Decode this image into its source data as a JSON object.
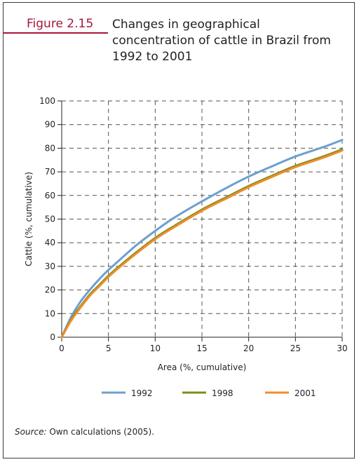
{
  "figure": {
    "number": "Figure 2.15",
    "title": "Changes in geographical concentration of cattle in Brazil from 1992 to 2001"
  },
  "source": {
    "label": "Source:",
    "text": " Own calculations (2005)."
  },
  "chart_data": {
    "type": "line",
    "xlabel": "Area (%, cumulative)",
    "ylabel": "Cattle (%, cumulative)",
    "xlim": [
      0,
      30
    ],
    "ylim": [
      0,
      100
    ],
    "xticks": [
      0,
      5,
      10,
      15,
      20,
      25,
      30
    ],
    "yticks": [
      0,
      10,
      20,
      30,
      40,
      50,
      60,
      70,
      80,
      90,
      100
    ],
    "grid": true,
    "legend_position": "bottom",
    "x": [
      0,
      1,
      2,
      3,
      4,
      5,
      6,
      8,
      10,
      12,
      15,
      18,
      20,
      22,
      25,
      28,
      30
    ],
    "series": [
      {
        "name": "1992",
        "color": "#6e9fcf",
        "values": [
          0,
          8.5,
          15,
          20,
          24.5,
          28.5,
          32,
          39,
          45,
          50.5,
          57.5,
          64,
          68,
          71.5,
          76.5,
          80.5,
          83.5
        ]
      },
      {
        "name": "1998",
        "color": "#7f8c1c",
        "values": [
          0,
          7.5,
          13,
          18,
          22,
          26,
          29.5,
          36,
          42,
          47,
          54,
          60,
          64,
          67.5,
          72.5,
          76.5,
          79.5
        ]
      },
      {
        "name": "2001",
        "color": "#f08d2a",
        "values": [
          0,
          7,
          12.5,
          17.5,
          21.5,
          25.5,
          29,
          35.5,
          41.5,
          46.5,
          53.5,
          59.5,
          63.5,
          67,
          72,
          76,
          79
        ]
      }
    ]
  }
}
